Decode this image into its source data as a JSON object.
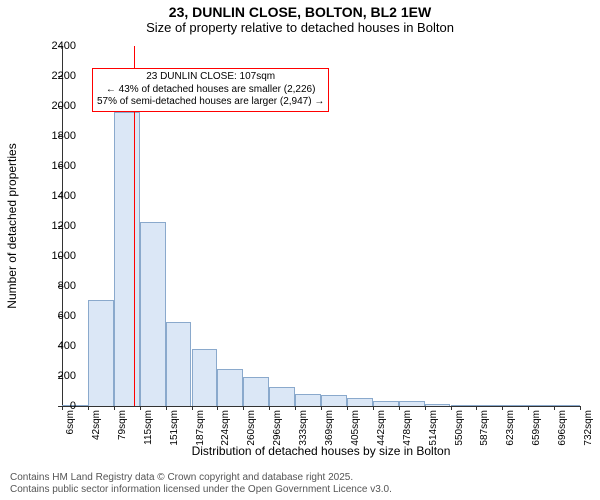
{
  "title": {
    "line1": "23, DUNLIN CLOSE, BOLTON, BL2 1EW",
    "line2": "Size of property relative to detached houses in Bolton"
  },
  "chart": {
    "type": "histogram",
    "ylabel": "Number of detached properties",
    "xlabel": "Distribution of detached houses by size in Bolton",
    "ylim": [
      0,
      2400
    ],
    "ytick_step": 200,
    "x_start": 6,
    "x_bin_width": 36.36,
    "x_tick_labels": [
      "6sqm",
      "42sqm",
      "79sqm",
      "115sqm",
      "151sqm",
      "187sqm",
      "224sqm",
      "260sqm",
      "296sqm",
      "333sqm",
      "369sqm",
      "405sqm",
      "442sqm",
      "478sqm",
      "514sqm",
      "550sqm",
      "587sqm",
      "623sqm",
      "659sqm",
      "696sqm",
      "732sqm"
    ],
    "values": [
      0,
      710,
      1960,
      1230,
      560,
      380,
      250,
      195,
      130,
      80,
      75,
      55,
      35,
      35,
      12,
      8,
      5,
      4,
      3,
      2
    ],
    "bar_fill": "#dbe7f6",
    "bar_border": "#8aa9cc",
    "background_color": "#ffffff",
    "axis_color": "#333333",
    "marker_value": 107,
    "marker_color": "#ff0000",
    "annotation": {
      "lines": [
        "23 DUNLIN CLOSE: 107sqm",
        "← 43% of detached houses are smaller (2,226)",
        "57% of semi-detached houses are larger (2,947) →"
      ],
      "border_color": "#ff0000",
      "background_color": "#ffffff"
    }
  },
  "footer": {
    "line1": "Contains HM Land Registry data © Crown copyright and database right 2025.",
    "line2": "Contains public sector information licensed under the Open Government Licence v3.0."
  }
}
